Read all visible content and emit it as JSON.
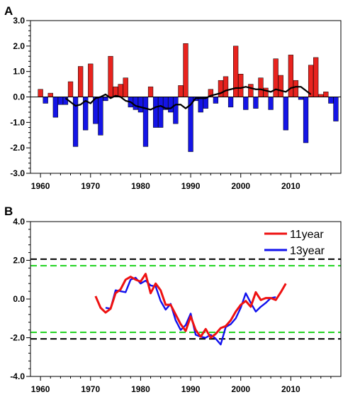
{
  "chart_data": [
    {
      "panel": "A",
      "type": "bar",
      "xlim": [
        1958,
        2020
      ],
      "ylim": [
        -3.0,
        3.0
      ],
      "x_ticks": [
        1960,
        1970,
        1980,
        1990,
        2000,
        2010
      ],
      "y_ticks": [
        -3.0,
        -2.0,
        -1.0,
        0.0,
        1.0,
        2.0,
        3.0
      ],
      "y_tick_labels": [
        "-3.0",
        "-2.0",
        "-1.0",
        "0.0",
        "1.0",
        "2.0",
        "3.0"
      ],
      "x_tick_labels": [
        "1960",
        "1970",
        "1980",
        "1990",
        "2000",
        "2010"
      ],
      "colors": {
        "positive": "#e8231e",
        "negative": "#1414e6",
        "line": "#000000"
      },
      "bars": {
        "x": [
          1960,
          1961,
          1962,
          1963,
          1964,
          1965,
          1966,
          1967,
          1968,
          1969,
          1970,
          1971,
          1972,
          1973,
          1974,
          1975,
          1976,
          1977,
          1978,
          1979,
          1980,
          1981,
          1982,
          1983,
          1984,
          1985,
          1986,
          1987,
          1988,
          1989,
          1990,
          1991,
          1992,
          1993,
          1994,
          1995,
          1996,
          1997,
          1998,
          1999,
          2000,
          2001,
          2002,
          2003,
          2004,
          2005,
          2006,
          2007,
          2008,
          2009,
          2010,
          2011,
          2012,
          2013,
          2014,
          2015,
          2016,
          2017,
          2018,
          2019
        ],
        "values": [
          0.3,
          -0.25,
          0.15,
          -0.8,
          -0.3,
          -0.3,
          0.6,
          -1.95,
          1.2,
          -1.3,
          1.3,
          -1.05,
          -1.5,
          -0.15,
          1.6,
          0.4,
          0.5,
          0.75,
          -0.4,
          -0.5,
          -0.6,
          -1.95,
          0.4,
          -1.2,
          -1.2,
          -0.5,
          -0.6,
          -1.05,
          0.45,
          2.1,
          -2.15,
          -0.15,
          -0.6,
          -0.45,
          0.3,
          -0.25,
          0.65,
          0.8,
          -0.4,
          2.0,
          0.9,
          -0.5,
          0.5,
          -0.45,
          0.75,
          0.35,
          -0.5,
          1.5,
          0.85,
          -1.3,
          1.65,
          0.65,
          -0.1,
          -1.8,
          1.25,
          1.55,
          0.1,
          0.2,
          -0.25,
          -0.95
        ]
      },
      "line": {
        "x": [
          1965,
          1966,
          1967,
          1968,
          1969,
          1970,
          1971,
          1972,
          1973,
          1974,
          1975,
          1976,
          1977,
          1978,
          1979,
          1980,
          1981,
          1982,
          1983,
          1984,
          1985,
          1986,
          1987,
          1988,
          1989,
          1990,
          1991,
          1992,
          1993,
          1994,
          1995,
          1996,
          1997,
          1998,
          1999,
          2000,
          2001,
          2002,
          2003,
          2004,
          2005,
          2006,
          2007,
          2008,
          2009,
          2010,
          2011,
          2012,
          2013,
          2014
        ],
        "values": [
          -0.05,
          -0.2,
          -0.35,
          -0.3,
          -0.15,
          -0.25,
          -0.05,
          0.0,
          0.1,
          -0.05,
          0.05,
          0.0,
          -0.15,
          -0.2,
          -0.35,
          -0.4,
          -0.45,
          -0.5,
          -0.4,
          -0.35,
          -0.45,
          -0.45,
          -0.3,
          -0.3,
          -0.45,
          -0.3,
          -0.05,
          -0.05,
          -0.05,
          0.05,
          0.1,
          0.15,
          0.25,
          0.3,
          0.35,
          0.35,
          0.4,
          0.35,
          0.3,
          0.3,
          0.25,
          0.2,
          0.3,
          0.25,
          0.2,
          0.35,
          0.4,
          0.4,
          0.25,
          0.1
        ]
      }
    },
    {
      "panel": "B",
      "type": "line",
      "xlim": [
        1958,
        2020
      ],
      "ylim": [
        -4.0,
        4.0
      ],
      "x_ticks": [
        1960,
        1970,
        1980,
        1990,
        2000,
        2010
      ],
      "y_ticks": [
        -4.0,
        -2.0,
        0.0,
        2.0,
        4.0
      ],
      "y_tick_labels": [
        "-4.0",
        "-2.0",
        "0.0",
        "2.0",
        "4.0"
      ],
      "x_tick_labels": [
        "1960",
        "1970",
        "1980",
        "1990",
        "2000",
        "2010"
      ],
      "reference_lines": [
        {
          "value": 2.06,
          "color": "#000000",
          "style": "dashed"
        },
        {
          "value": 1.72,
          "color": "#1fd41f",
          "style": "dashed"
        },
        {
          "value": -1.72,
          "color": "#1fd41f",
          "style": "dashed"
        },
        {
          "value": -2.06,
          "color": "#000000",
          "style": "dashed"
        }
      ],
      "legend": {
        "placement": "top-right"
      },
      "series": [
        {
          "name": "11year",
          "color": "#ee1111",
          "x": [
            1971,
            1972,
            1973,
            1974,
            1975,
            1976,
            1977,
            1978,
            1979,
            1980,
            1981,
            1982,
            1983,
            1984,
            1985,
            1986,
            1987,
            1988,
            1989,
            1990,
            1991,
            1992,
            1993,
            1994,
            1995,
            1996,
            1997,
            1998,
            1999,
            2000,
            2001,
            2002,
            2003,
            2004,
            2005,
            2006,
            2007,
            2008,
            2009
          ],
          "values": [
            0.15,
            -0.45,
            -0.7,
            -0.5,
            0.3,
            0.5,
            1.0,
            1.15,
            1.0,
            0.9,
            1.3,
            0.3,
            0.8,
            0.45,
            -0.3,
            -0.3,
            -0.8,
            -1.3,
            -1.65,
            -0.9,
            -1.6,
            -1.95,
            -1.55,
            -2.0,
            -1.8,
            -1.5,
            -1.4,
            -1.1,
            -0.65,
            -0.3,
            -0.1,
            -0.4,
            0.35,
            -0.05,
            0.05,
            0.05,
            -0.05,
            0.35,
            0.8
          ]
        },
        {
          "name": "13year",
          "color": "#1111ee",
          "x": [
            1973,
            1974,
            1975,
            1976,
            1977,
            1978,
            1979,
            1980,
            1981,
            1982,
            1983,
            1984,
            1985,
            1986,
            1987,
            1988,
            1989,
            1990,
            1991,
            1992,
            1993,
            1994,
            1995,
            1996,
            1997,
            1998,
            1999,
            2000,
            2001,
            2002,
            2003,
            2004,
            2005,
            2006,
            2007
          ],
          "values": [
            -0.45,
            -0.5,
            0.45,
            0.4,
            0.35,
            1.0,
            1.1,
            0.8,
            0.95,
            0.7,
            0.65,
            -0.1,
            -0.55,
            -0.25,
            -1.1,
            -1.6,
            -1.35,
            -0.75,
            -1.85,
            -1.95,
            -2.0,
            -1.85,
            -2.05,
            -2.35,
            -1.45,
            -1.3,
            -1.0,
            -0.45,
            0.3,
            -0.2,
            -0.65,
            -0.4,
            -0.2,
            0.05,
            0.1
          ]
        }
      ]
    }
  ]
}
